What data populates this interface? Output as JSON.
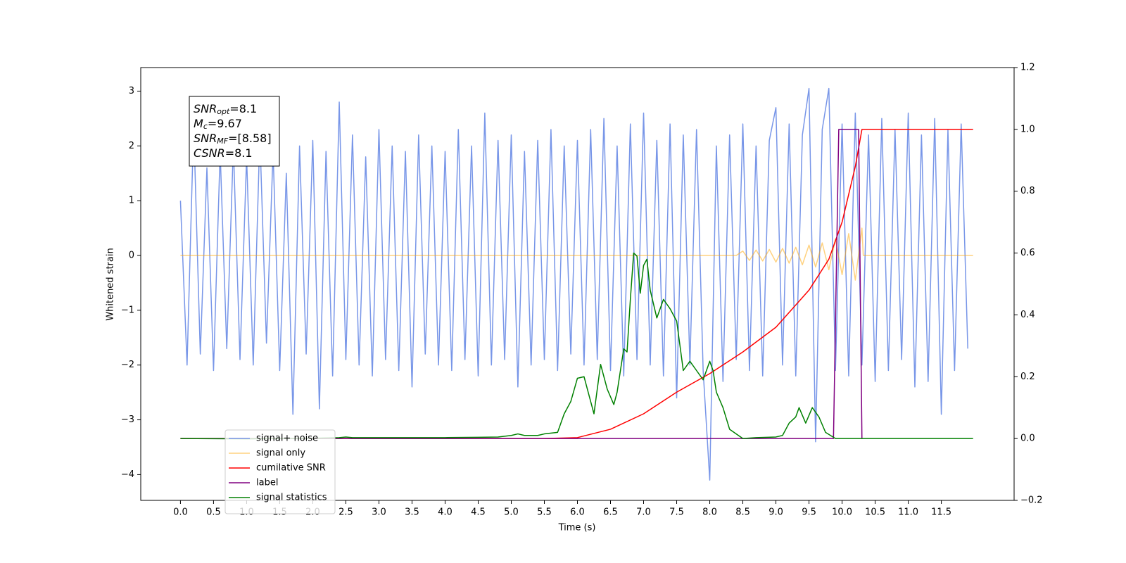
{
  "chart_data": {
    "type": "line",
    "xlabel": "Time (s)",
    "ylabel": "Whitened strain",
    "xlim": [
      -0.6,
      12.6
    ],
    "ylim": [
      -4.47,
      3.43
    ],
    "y2lim": [
      -0.2,
      1.2
    ],
    "xticks": [
      {
        "value": 0,
        "label": "0.0"
      },
      0.5,
      {
        "value": 1,
        "label": "1.0"
      },
      1.5,
      {
        "value": 2,
        "label": "2.0"
      },
      2.5,
      {
        "value": 3,
        "label": "3.0"
      },
      3.5,
      {
        "value": 4,
        "label": "4.0"
      },
      4.5,
      {
        "value": 5,
        "label": "5.0"
      },
      5.5,
      {
        "value": 6,
        "label": "6.0"
      },
      6.5,
      {
        "value": 7,
        "label": "7.0"
      },
      7.5,
      {
        "value": 8,
        "label": "8.0"
      },
      8.5,
      {
        "value": 9,
        "label": "9.0"
      },
      9.5,
      {
        "value": 10,
        "label": "10.0"
      },
      10.5,
      {
        "value": 11,
        "label": "11.0"
      },
      11.5
    ],
    "yticks": [
      {
        "value": -4,
        "label": "−4"
      },
      {
        "value": -3,
        "label": "−3"
      },
      {
        "value": -2,
        "label": "−2"
      },
      {
        "value": -1,
        "label": "−1"
      },
      0,
      1,
      2,
      3
    ],
    "y2ticks": [
      {
        "value": -0.2,
        "label": "−0.2"
      },
      {
        "value": 0,
        "label": "0.0"
      },
      0.2,
      0.4,
      0.6,
      0.8,
      {
        "value": 1,
        "label": "1.0"
      },
      1.2
    ],
    "legend": "lower left",
    "annotations": [
      {
        "text": "SNR",
        "sub": "opt",
        "value": "=8.1"
      },
      {
        "text": "M",
        "sub": "c",
        "value": "=9.67"
      },
      {
        "text": "SNR",
        "sub": "MF",
        "value": "=[8.58]"
      },
      {
        "text": "CSNR",
        "value": "=8.1"
      }
    ],
    "series": [
      {
        "name": "signal+ noise",
        "color": "#7896e8",
        "alpha": 1,
        "x": [
          0,
          0.1,
          0.2,
          0.3,
          0.4,
          0.5,
          0.6,
          0.7,
          0.8,
          0.9,
          1.0,
          1.1,
          1.2,
          1.3,
          1.4,
          1.5,
          1.6,
          1.7,
          1.8,
          1.9,
          2.0,
          2.1,
          2.2,
          2.3,
          2.4,
          2.5,
          2.6,
          2.7,
          2.8,
          2.9,
          3.0,
          3.1,
          3.2,
          3.3,
          3.4,
          3.5,
          3.6,
          3.7,
          3.8,
          3.9,
          4.0,
          4.1,
          4.2,
          4.3,
          4.4,
          4.5,
          4.6,
          4.7,
          4.8,
          4.9,
          5.0,
          5.1,
          5.2,
          5.3,
          5.4,
          5.5,
          5.6,
          5.7,
          5.8,
          5.9,
          6.0,
          6.1,
          6.2,
          6.3,
          6.4,
          6.5,
          6.6,
          6.7,
          6.8,
          6.9,
          7.0,
          7.1,
          7.2,
          7.3,
          7.4,
          7.5,
          7.6,
          7.7,
          7.8,
          7.9,
          8.0,
          8.1,
          8.2,
          8.3,
          8.4,
          8.5,
          8.6,
          8.7,
          8.8,
          8.9,
          9.0,
          9.1,
          9.2,
          9.3,
          9.4,
          9.5,
          9.6,
          9.7,
          9.8,
          9.9,
          10.0,
          10.1,
          10.2,
          10.3,
          10.4,
          10.5,
          10.6,
          10.7,
          10.8,
          10.9,
          11.0,
          11.1,
          11.2,
          11.3,
          11.4,
          11.5,
          11.6,
          11.7,
          11.8,
          11.9
        ],
        "values": [
          1.0,
          -2.0,
          2.4,
          -1.8,
          1.6,
          -2.1,
          1.9,
          -1.7,
          2.0,
          -1.9,
          1.8,
          -2.0,
          2.2,
          -1.6,
          1.9,
          -2.1,
          1.5,
          -2.9,
          2.0,
          -1.8,
          2.1,
          -2.8,
          1.9,
          -2.2,
          2.8,
          -1.9,
          2.2,
          -2.0,
          1.8,
          -2.2,
          2.3,
          -1.9,
          2.0,
          -2.1,
          1.9,
          -2.4,
          2.2,
          -1.8,
          2.0,
          -2.0,
          1.9,
          -2.1,
          2.3,
          -1.9,
          2.0,
          -2.2,
          2.6,
          -2.0,
          2.1,
          -1.9,
          2.2,
          -2.4,
          1.9,
          -2.0,
          2.1,
          -1.9,
          2.3,
          -2.1,
          2.0,
          -1.8,
          2.1,
          -2.0,
          2.3,
          -1.9,
          2.5,
          -2.1,
          2.0,
          -2.2,
          2.4,
          -1.9,
          2.6,
          -2.0,
          2.1,
          -2.2,
          2.4,
          -2.6,
          2.2,
          -2.0,
          2.3,
          -2.1,
          -4.1,
          2.0,
          -2.3,
          2.2,
          -1.9,
          2.4,
          -2.1,
          2.0,
          -2.2,
          2.1,
          2.7,
          -2.0,
          2.4,
          -2.2,
          2.2,
          3.05,
          -3.4,
          2.3,
          3.05,
          -2.1,
          2.4,
          -2.2,
          2.6,
          -2.0,
          2.2,
          -2.3,
          2.5,
          -2.1,
          2.3,
          -1.9,
          2.6,
          -2.4,
          2.2,
          -2.3,
          2.5,
          -2.9,
          2.3,
          -2.1,
          2.4,
          -1.7
        ]
      },
      {
        "name": "signal only",
        "color": "#ffa500",
        "alpha": 0.5,
        "x": [
          0,
          8.4,
          8.5,
          8.6,
          8.7,
          8.8,
          8.9,
          9.0,
          9.1,
          9.2,
          9.3,
          9.4,
          9.5,
          9.6,
          9.7,
          9.8,
          9.9,
          10.0,
          10.1,
          10.2,
          10.3,
          10.32,
          11.98
        ],
        "values": [
          0,
          0,
          0.08,
          -0.09,
          0.1,
          -0.1,
          0.11,
          -0.12,
          0.13,
          -0.14,
          0.15,
          -0.17,
          0.19,
          -0.21,
          0.23,
          -0.26,
          0.3,
          -0.35,
          0.4,
          -0.45,
          0.5,
          0,
          0
        ]
      },
      {
        "name": "cumilative SNR",
        "color": "#ff0000",
        "alpha": 1,
        "axis": "y2",
        "x": [
          0,
          5.5,
          6.0,
          6.5,
          7.0,
          7.5,
          8.0,
          8.5,
          9.0,
          9.5,
          9.8,
          10.0,
          10.2,
          10.3,
          11.98
        ],
        "values": [
          0,
          0,
          0.003,
          0.03,
          0.08,
          0.15,
          0.21,
          0.28,
          0.36,
          0.48,
          0.58,
          0.7,
          0.88,
          1.0,
          1.0
        ]
      },
      {
        "name": "label",
        "color": "#800080",
        "alpha": 1,
        "axis": "y2",
        "x": [
          0,
          9.87,
          9.95,
          10.25,
          10.3
        ],
        "values": [
          0,
          0,
          1.0,
          1.0,
          0
        ]
      },
      {
        "name": "signal statistics",
        "color": "#008000",
        "alpha": 1,
        "axis": "y2",
        "x": [
          0,
          1.0,
          2.0,
          2.4,
          2.5,
          2.6,
          3.0,
          4.0,
          4.5,
          4.8,
          5.0,
          5.1,
          5.2,
          5.4,
          5.5,
          5.7,
          5.8,
          5.9,
          6.0,
          6.1,
          6.2,
          6.25,
          6.35,
          6.45,
          6.55,
          6.6,
          6.7,
          6.75,
          6.8,
          6.85,
          6.9,
          6.95,
          7.0,
          7.05,
          7.1,
          7.2,
          7.3,
          7.4,
          7.5,
          7.6,
          7.7,
          7.8,
          7.9,
          8.0,
          8.05,
          8.1,
          8.2,
          8.3,
          8.5,
          8.7,
          9.0,
          9.1,
          9.2,
          9.3,
          9.35,
          9.45,
          9.55,
          9.65,
          9.75,
          9.9,
          10.5,
          11.98
        ],
        "values": [
          0,
          -0.001,
          0.001,
          0.003,
          0.005,
          0.003,
          0.003,
          0.003,
          0.004,
          0.005,
          0.01,
          0.015,
          0.01,
          0.01,
          0.015,
          0.02,
          0.08,
          0.12,
          0.195,
          0.2,
          0.12,
          0.08,
          0.24,
          0.16,
          0.11,
          0.15,
          0.29,
          0.28,
          0.45,
          0.6,
          0.59,
          0.47,
          0.56,
          0.58,
          0.48,
          0.39,
          0.45,
          0.42,
          0.38,
          0.22,
          0.25,
          0.22,
          0.19,
          0.25,
          0.22,
          0.15,
          0.1,
          0.03,
          0.0,
          0.003,
          0.005,
          0.01,
          0.05,
          0.07,
          0.1,
          0.05,
          0.1,
          0.07,
          0.02,
          0.0,
          0.0,
          0.0
        ]
      }
    ]
  }
}
